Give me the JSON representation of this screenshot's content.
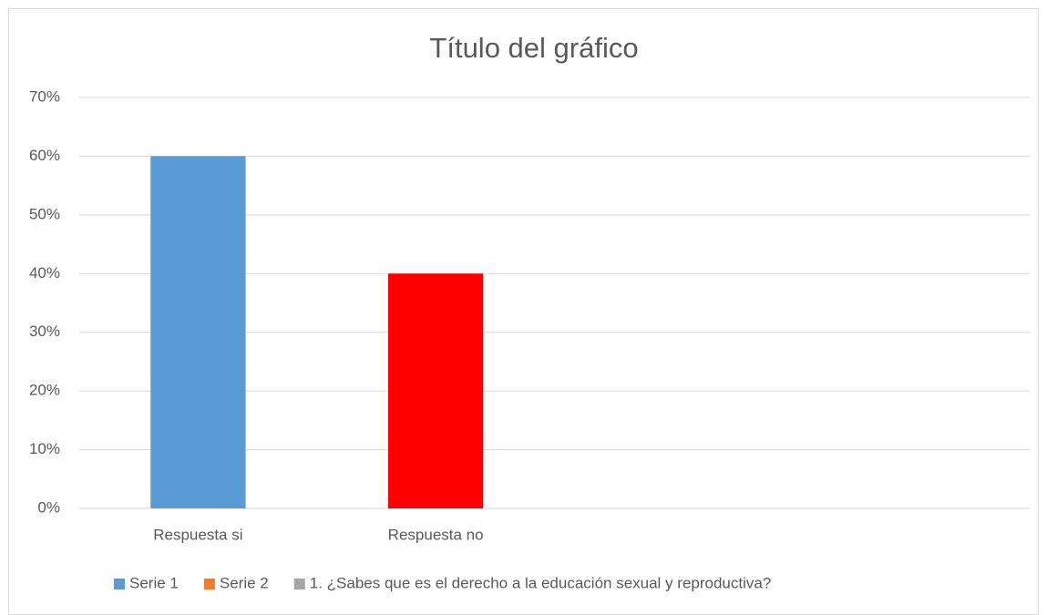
{
  "chart_data": {
    "type": "bar",
    "title": "Título del gráfico",
    "categories": [
      "Respuesta si",
      "Respuesta no",
      null,
      null
    ],
    "series": [
      {
        "name": "Serie 1",
        "color": "#5b9bd5",
        "values": [
          60,
          40,
          null,
          null
        ],
        "point_colors": [
          "#5b9bd5",
          "#ff0000",
          null,
          null
        ]
      },
      {
        "name": "Serie 2",
        "color": "#ed7d31"
      },
      {
        "name": "1. ¿Sabes que es el derecho a la educación sexual y reproductiva?",
        "color": "#a5a5a5"
      }
    ],
    "ylim": [
      0,
      70
    ],
    "yticks": [
      {
        "value": 0,
        "label": "0%"
      },
      {
        "value": 10,
        "label": "10%"
      },
      {
        "value": 20,
        "label": "20%"
      },
      {
        "value": 30,
        "label": "30%"
      },
      {
        "value": 40,
        "label": "40%"
      },
      {
        "value": 50,
        "label": "50%"
      },
      {
        "value": 60,
        "label": "60%"
      },
      {
        "value": 70,
        "label": "70%"
      }
    ],
    "grid": true,
    "legend": "bottom"
  }
}
